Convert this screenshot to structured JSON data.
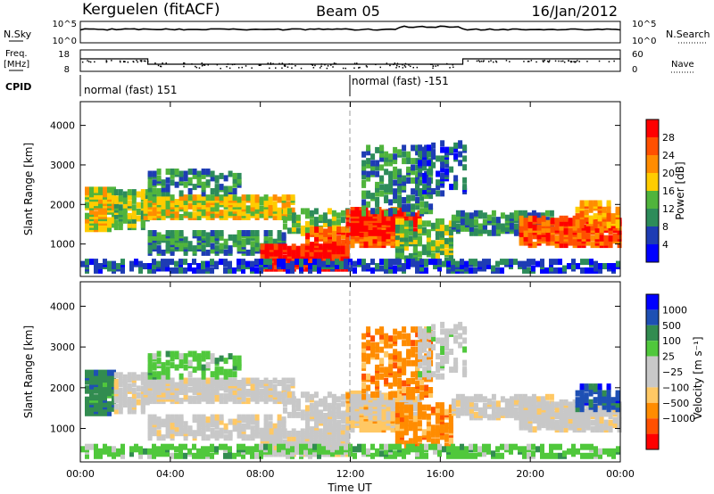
{
  "header": {
    "station": "Kerguelen (fitACF)",
    "beam": "Beam 05",
    "date": "16/Jan/2012"
  },
  "param_panels": {
    "nsky_label": "N.Sky",
    "nsky_ticks": [
      "10^5",
      "10^0"
    ],
    "nsearch_label": "N.Search",
    "nsearch_ticks": [
      "10^5",
      "10^0"
    ],
    "freq_label_1": "Freq.",
    "freq_label_2": "[MHz]",
    "freq_ticks": [
      "18",
      "8"
    ],
    "nave_label": "Nave",
    "nave_ticks": [
      "60",
      "0"
    ],
    "cpid_label": "CPID",
    "cpid_segments": [
      "normal (fast) 151",
      "normal (fast) -151"
    ]
  },
  "colors": {
    "power_scale": [
      "#0000ff",
      "#1e3cb4",
      "#2d8c5a",
      "#50b43c",
      "#ffcc00",
      "#ff8c00",
      "#ff5000",
      "#ff0000"
    ],
    "velocity_scale": [
      "#ff0000",
      "#ff5000",
      "#ff8c00",
      "#ffc864",
      "#c8c8c8",
      "#c8c8c8",
      "#50c83c",
      "#328c50",
      "#1e50b4",
      "#0000ff"
    ],
    "ground_scatter": "#c8c8c8"
  },
  "chart_data": [
    {
      "type": "heatmap",
      "title": "",
      "xlabel": "",
      "ylabel": "Slant Range [km]",
      "xlim": [
        0,
        24
      ],
      "ylim": [
        180,
        4600
      ],
      "y_ticks": [
        "1000",
        "2000",
        "3000",
        "4000"
      ],
      "colorbar_label": "Power [dB]",
      "colorbar_ticks": [
        "4",
        "8",
        "12",
        "16",
        "20",
        "24",
        "28"
      ],
      "colorbar_range": [
        0,
        32
      ]
    },
    {
      "type": "heatmap",
      "title": "",
      "xlabel": "Time UT",
      "ylabel": "Slant Range [km]",
      "xlim": [
        0,
        24
      ],
      "ylim": [
        180,
        4600
      ],
      "x_ticks": [
        "00:00",
        "04:00",
        "08:00",
        "12:00",
        "16:00",
        "20:00",
        "00:00"
      ],
      "y_ticks": [
        "1000",
        "2000",
        "3000",
        "4000"
      ],
      "colorbar_label": "Velocity [m s⁻¹]",
      "colorbar_ticks": [
        "1000",
        "500",
        "100",
        "25",
        "−25",
        "−100",
        "−500",
        "−1000"
      ]
    }
  ]
}
